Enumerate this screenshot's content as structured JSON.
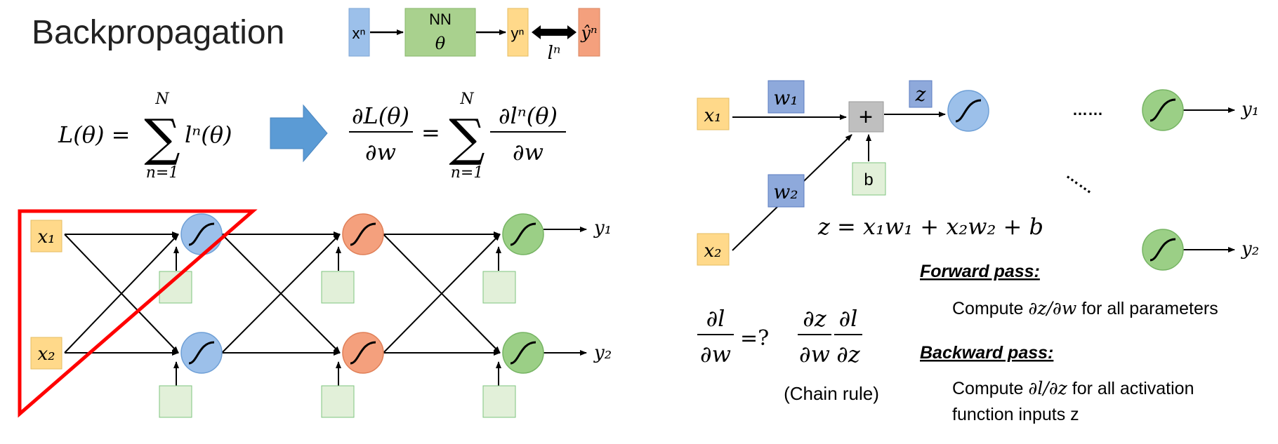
{
  "title": "Backpropagation",
  "header_diagram": {
    "input_label": "xⁿ",
    "nn_label": "NN",
    "nn_param": "θ",
    "output_label": "yⁿ",
    "target_label": "ŷⁿ",
    "loss_label": "lⁿ"
  },
  "equations": {
    "loss_lhs": "L(θ) =",
    "loss_rhs": "lⁿ(θ)",
    "grad_num": "∂L(θ)",
    "grad_den": "∂w",
    "grad_eq": "=",
    "grad_term_num": "∂lⁿ(θ)",
    "grad_term_den": "∂w",
    "sum_top": "N",
    "sum_bottom": "n=1",
    "neuron_eq": "z = x₁w₁ + x₂w₂ + b",
    "dl_num": "∂l",
    "dl_den": "∂w",
    "dl_query": "=?",
    "dz_num": "∂z",
    "dz_den": "∂w",
    "dl_dz_num": "∂l",
    "dl_dz_den": "∂z"
  },
  "network": {
    "inputs": [
      "x₁",
      "x₂"
    ],
    "outputs": [
      "y₁",
      "y₂"
    ],
    "colors": {
      "input": "#ffd98a",
      "layer1": "#9cc0ea",
      "layer2": "#f4a07d",
      "layer3": "#9bcf86",
      "bias": "#e2f0d9",
      "highlight": "#ff0000"
    }
  },
  "neuron_detail": {
    "inputs": [
      "x₁",
      "x₂"
    ],
    "weights": [
      "w₁",
      "w₂"
    ],
    "sum_symbol": "+",
    "z_label": "z",
    "bias_label": "b",
    "outputs": [
      "y₁",
      "y₂"
    ],
    "ellipsis": "……",
    "diag_ellipsis": "……"
  },
  "chain_rule_label": "(Chain rule)",
  "forward_pass": {
    "heading": "Forward pass:",
    "text_prefix": "Compute ",
    "text_math": "∂z/∂w",
    "text_suffix": " for all parameters"
  },
  "backward_pass": {
    "heading": "Backward pass:",
    "text_prefix": "Compute ",
    "text_math": "∂l/∂z",
    "text_suffix": " for all activation",
    "text_line2": "function inputs z"
  }
}
